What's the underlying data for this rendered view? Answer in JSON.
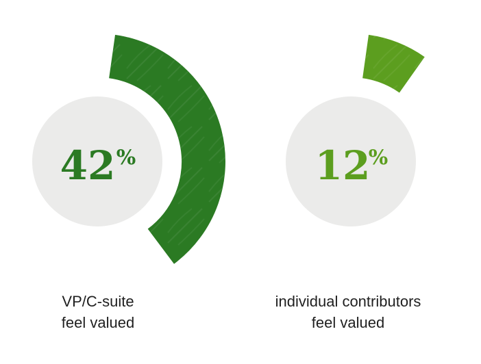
{
  "chart_data": {
    "type": "pie",
    "title": "",
    "series": [
      {
        "label_line1": "VP/C-suite",
        "label_line2": "feel valued",
        "value": 42,
        "value_text": "42",
        "unit": "%",
        "color": "#2b7a23"
      },
      {
        "label_line1": "individual contributors",
        "label_line2": "feel valued",
        "value": 12,
        "value_text": "12",
        "unit": "%",
        "color": "#5c9e1f"
      }
    ],
    "max": 100,
    "center_fill": "#ebebea"
  }
}
